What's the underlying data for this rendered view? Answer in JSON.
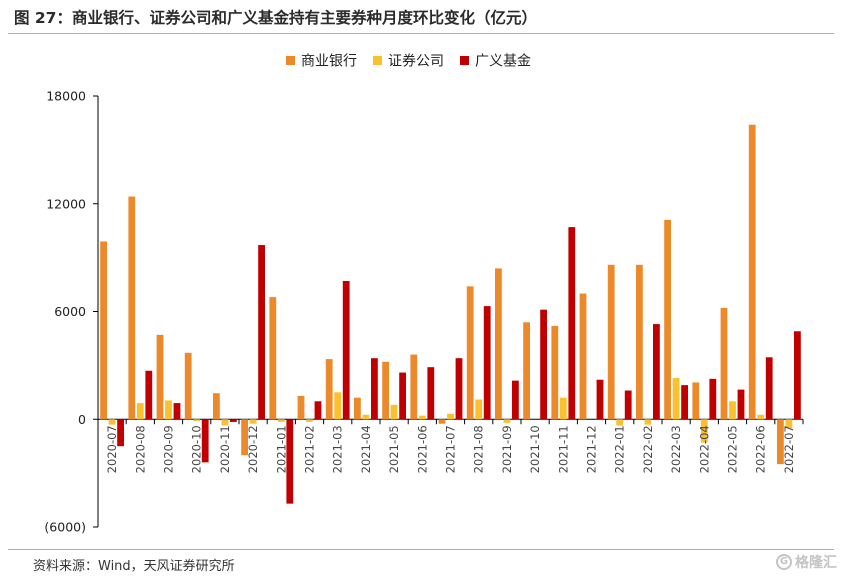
{
  "title": "图 27：商业银行、证券公司和广义基金持有主要券种月度环比变化（亿元）",
  "source": "资料来源：Wind，天风证券研究所",
  "watermark": "格隆汇",
  "chart_data": {
    "type": "bar",
    "categories": [
      "2020-07",
      "2020-08",
      "2020-09",
      "2020-10",
      "2020-11",
      "2020-12",
      "2021-01",
      "2021-02",
      "2021-03",
      "2021-04",
      "2021-05",
      "2021-06",
      "2021-07",
      "2021-08",
      "2021-09",
      "2021-10",
      "2021-11",
      "2021-12",
      "2022-01",
      "2022-02",
      "2022-03",
      "2022-04",
      "2022-05",
      "2022-06",
      "2022-07"
    ],
    "series": [
      {
        "name": "商业银行",
        "color": "#ec8a2b",
        "values": [
          9900,
          12400,
          4700,
          3700,
          1450,
          -2000,
          6800,
          1300,
          3350,
          1200,
          3200,
          3600,
          -250,
          7400,
          8400,
          5400,
          5200,
          7000,
          8600,
          8600,
          11100,
          2050,
          6200,
          16400,
          -2500
        ]
      },
      {
        "name": "证券公司",
        "color": "#fbc02d",
        "values": [
          -300,
          900,
          1050,
          -100,
          -350,
          -250,
          -150,
          -150,
          1500,
          250,
          800,
          200,
          300,
          1100,
          -200,
          0,
          1200,
          0,
          -350,
          -300,
          2300,
          -1300,
          1000,
          250,
          -500
        ]
      },
      {
        "name": "广义基金",
        "color": "#c00000",
        "values": [
          -1500,
          2700,
          900,
          -2400,
          -150,
          9700,
          -4700,
          1000,
          7700,
          3400,
          2600,
          2900,
          3400,
          6300,
          2150,
          6100,
          10700,
          2200,
          1600,
          5300,
          1900,
          2250,
          1650,
          3450,
          4900
        ]
      }
    ],
    "ylim": [
      -6000,
      18000
    ],
    "yticks": [
      -6000,
      0,
      6000,
      12000,
      18000
    ],
    "ytick_labels": [
      "(6000)",
      "0",
      "6000",
      "12000",
      "18000"
    ],
    "legend_position": "top"
  }
}
